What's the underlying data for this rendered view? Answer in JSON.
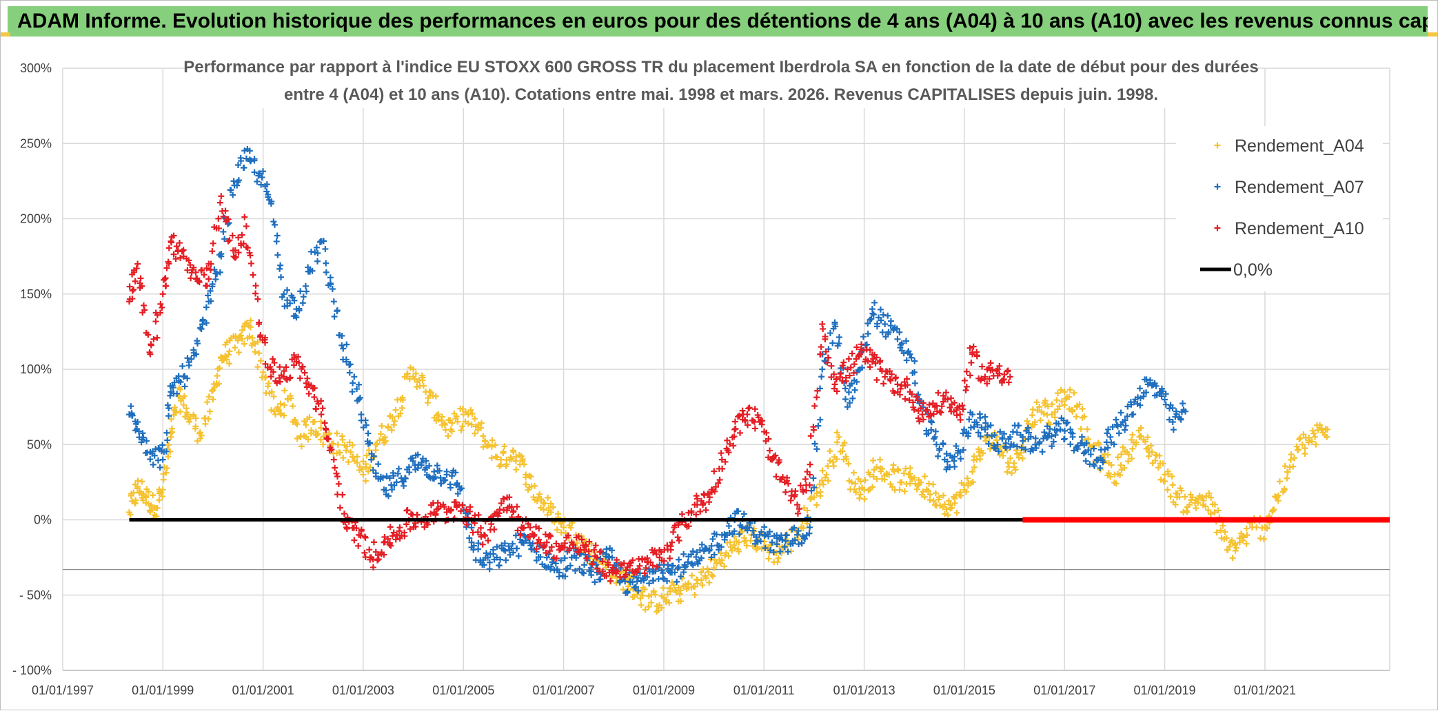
{
  "header": {
    "title": "ADAM Informe. Evolution historique des performances en euros pour des détentions de 4 ans (A04) à 10 ans (A10) avec les revenus connus capitalisés"
  },
  "chart_data": {
    "type": "scatter",
    "title_line1": "Performance par rapport à l'indice EU STOXX 600 GROSS TR  du placement Iberdrola SA en fonction de la date de début pour des durées",
    "title_line2": "entre 4 (A04) et 10 ans (A10). Cotations entre mai. 1998 et mars. 2026. Revenus CAPITALISES depuis juin. 1998.",
    "x_axis": {
      "type": "date",
      "range": [
        "1997-01-01",
        "2023-06-30"
      ],
      "tick_labels": [
        "01/01/1997",
        "01/01/1999",
        "01/01/2001",
        "01/01/2003",
        "01/01/2005",
        "01/01/2007",
        "01/01/2009",
        "01/01/2011",
        "01/01/2013",
        "01/01/2015",
        "01/01/2017",
        "01/01/2019",
        "01/01/2021"
      ]
    },
    "y_axis": {
      "range": [
        -100,
        300
      ],
      "unit": "%",
      "tick_values": [
        300,
        250,
        200,
        150,
        100,
        50,
        0,
        -50,
        -100
      ],
      "tick_labels": [
        "300%",
        "250%",
        "200%",
        "150%",
        "100%",
        "50%",
        "0%",
        "- 50%",
        "- 100%"
      ]
    },
    "grid": true,
    "legend_position": "top-right",
    "series": [
      {
        "name": "Rendement_A04",
        "color": "#f5c231",
        "marker": "plus",
        "points": [
          [
            "1998-05-01",
            5
          ],
          [
            "1998-07-01",
            22
          ],
          [
            "1998-09-01",
            15
          ],
          [
            "1998-11-01",
            8
          ],
          [
            "1999-01-01",
            20
          ],
          [
            "1999-03-01",
            55
          ],
          [
            "1999-05-01",
            82
          ],
          [
            "1999-07-01",
            70
          ],
          [
            "1999-10-01",
            58
          ],
          [
            "2000-01-01",
            80
          ],
          [
            "2000-03-01",
            108
          ],
          [
            "2000-05-01",
            112
          ],
          [
            "2000-08-01",
            120
          ],
          [
            "2000-10-01",
            128
          ],
          [
            "2001-01-01",
            98
          ],
          [
            "2001-04-01",
            70
          ],
          [
            "2001-07-01",
            80
          ],
          [
            "2001-10-01",
            55
          ],
          [
            "2002-01-01",
            65
          ],
          [
            "2002-04-01",
            55
          ],
          [
            "2002-07-01",
            50
          ],
          [
            "2002-10-01",
            45
          ],
          [
            "2003-01-01",
            30
          ],
          [
            "2003-04-01",
            50
          ],
          [
            "2003-07-01",
            62
          ],
          [
            "2003-10-01",
            80
          ],
          [
            "2004-01-01",
            100
          ],
          [
            "2004-04-01",
            85
          ],
          [
            "2004-07-01",
            70
          ],
          [
            "2004-10-01",
            60
          ],
          [
            "2005-01-01",
            70
          ],
          [
            "2005-04-01",
            62
          ],
          [
            "2005-07-01",
            50
          ],
          [
            "2005-10-01",
            40
          ],
          [
            "2006-01-01",
            45
          ],
          [
            "2006-04-01",
            30
          ],
          [
            "2006-07-01",
            15
          ],
          [
            "2006-10-01",
            5
          ],
          [
            "2007-01-01",
            -5
          ],
          [
            "2007-04-01",
            -10
          ],
          [
            "2007-07-01",
            -20
          ],
          [
            "2007-10-01",
            -28
          ],
          [
            "2008-01-01",
            -35
          ],
          [
            "2008-04-01",
            -40
          ],
          [
            "2008-07-01",
            -48
          ],
          [
            "2008-10-01",
            -55
          ],
          [
            "2009-01-01",
            -52
          ],
          [
            "2009-04-01",
            -48
          ],
          [
            "2009-07-01",
            -45
          ],
          [
            "2009-10-01",
            -40
          ],
          [
            "2010-01-01",
            -32
          ],
          [
            "2010-04-01",
            -22
          ],
          [
            "2010-07-01",
            -15
          ],
          [
            "2010-10-01",
            -10
          ],
          [
            "2011-01-01",
            -18
          ],
          [
            "2011-04-01",
            -22
          ],
          [
            "2011-07-01",
            -15
          ],
          [
            "2011-10-01",
            -5
          ],
          [
            "2012-01-01",
            15
          ],
          [
            "2012-04-01",
            30
          ],
          [
            "2012-07-01",
            55
          ],
          [
            "2012-10-01",
            25
          ],
          [
            "2013-01-01",
            20
          ],
          [
            "2013-04-01",
            35
          ],
          [
            "2013-07-01",
            30
          ],
          [
            "2013-10-01",
            25
          ],
          [
            "2014-01-01",
            28
          ],
          [
            "2014-04-01",
            20
          ],
          [
            "2014-07-01",
            15
          ],
          [
            "2014-10-01",
            8
          ],
          [
            "2015-01-01",
            20
          ],
          [
            "2015-04-01",
            40
          ],
          [
            "2015-07-01",
            55
          ],
          [
            "2015-10-01",
            45
          ],
          [
            "2016-01-01",
            35
          ],
          [
            "2016-04-01",
            60
          ],
          [
            "2016-07-01",
            75
          ],
          [
            "2016-10-01",
            70
          ],
          [
            "2017-01-01",
            85
          ],
          [
            "2017-04-01",
            75
          ],
          [
            "2017-07-01",
            50
          ],
          [
            "2017-10-01",
            40
          ],
          [
            "2018-01-01",
            30
          ],
          [
            "2018-04-01",
            45
          ],
          [
            "2018-07-01",
            55
          ],
          [
            "2018-10-01",
            45
          ],
          [
            "2019-01-01",
            30
          ],
          [
            "2019-04-01",
            15
          ],
          [
            "2019-07-01",
            10
          ],
          [
            "2019-10-01",
            15
          ],
          [
            "2020-01-01",
            5
          ],
          [
            "2020-04-01",
            -20
          ],
          [
            "2020-07-01",
            -15
          ],
          [
            "2020-10-01",
            -5
          ],
          [
            "2021-01-01",
            -5
          ],
          [
            "2021-04-01",
            15
          ],
          [
            "2021-07-01",
            35
          ],
          [
            "2021-10-01",
            50
          ],
          [
            "2022-01-01",
            55
          ],
          [
            "2022-04-01",
            60
          ]
        ]
      },
      {
        "name": "Rendement_A07",
        "color": "#1f6fbf",
        "marker": "plus",
        "points": [
          [
            "1998-05-01",
            70
          ],
          [
            "1998-07-01",
            65
          ],
          [
            "1998-10-01",
            45
          ],
          [
            "1999-01-01",
            40
          ],
          [
            "1999-03-01",
            85
          ],
          [
            "1999-06-01",
            95
          ],
          [
            "1999-09-01",
            110
          ],
          [
            "1999-12-01",
            145
          ],
          [
            "2000-03-01",
            175
          ],
          [
            "2000-06-01",
            225
          ],
          [
            "2000-09-01",
            240
          ],
          [
            "2000-12-01",
            230
          ],
          [
            "2001-03-01",
            210
          ],
          [
            "2001-06-01",
            150
          ],
          [
            "2001-09-01",
            140
          ],
          [
            "2001-12-01",
            165
          ],
          [
            "2002-03-01",
            185
          ],
          [
            "2002-06-01",
            145
          ],
          [
            "2002-09-01",
            105
          ],
          [
            "2002-12-01",
            80
          ],
          [
            "2003-03-01",
            40
          ],
          [
            "2003-06-01",
            20
          ],
          [
            "2003-09-01",
            25
          ],
          [
            "2003-12-01",
            35
          ],
          [
            "2004-03-01",
            38
          ],
          [
            "2004-06-01",
            32
          ],
          [
            "2004-09-01",
            30
          ],
          [
            "2004-12-01",
            22
          ],
          [
            "2005-03-01",
            -15
          ],
          [
            "2005-06-01",
            -30
          ],
          [
            "2005-09-01",
            -25
          ],
          [
            "2005-12-01",
            -20
          ],
          [
            "2006-03-01",
            -15
          ],
          [
            "2006-06-01",
            -20
          ],
          [
            "2006-09-01",
            -25
          ],
          [
            "2006-12-01",
            -35
          ],
          [
            "2007-03-01",
            -25
          ],
          [
            "2007-06-01",
            -30
          ],
          [
            "2007-09-01",
            -35
          ],
          [
            "2007-12-01",
            -25
          ],
          [
            "2008-03-01",
            -40
          ],
          [
            "2008-06-01",
            -45
          ],
          [
            "2008-09-01",
            -38
          ],
          [
            "2008-12-01",
            -30
          ],
          [
            "2009-03-01",
            -35
          ],
          [
            "2009-06-01",
            -30
          ],
          [
            "2009-09-01",
            -28
          ],
          [
            "2009-12-01",
            -20
          ],
          [
            "2010-03-01",
            -10
          ],
          [
            "2010-06-01",
            0
          ],
          [
            "2010-09-01",
            -5
          ],
          [
            "2010-12-01",
            -10
          ],
          [
            "2011-03-01",
            -15
          ],
          [
            "2011-06-01",
            -18
          ],
          [
            "2011-09-01",
            -10
          ],
          [
            "2011-12-01",
            -5
          ],
          [
            "2012-03-01",
            100
          ],
          [
            "2012-06-01",
            130
          ],
          [
            "2012-09-01",
            75
          ],
          [
            "2012-12-01",
            100
          ],
          [
            "2013-03-01",
            140
          ],
          [
            "2013-06-01",
            130
          ],
          [
            "2013-09-01",
            120
          ],
          [
            "2013-12-01",
            110
          ],
          [
            "2014-03-01",
            70
          ],
          [
            "2014-06-01",
            55
          ],
          [
            "2014-09-01",
            35
          ],
          [
            "2014-12-01",
            45
          ],
          [
            "2015-03-01",
            70
          ],
          [
            "2015-06-01",
            60
          ],
          [
            "2015-09-01",
            50
          ],
          [
            "2015-12-01",
            55
          ],
          [
            "2016-03-01",
            55
          ],
          [
            "2016-06-01",
            50
          ],
          [
            "2016-09-01",
            55
          ],
          [
            "2016-12-01",
            60
          ],
          [
            "2017-03-01",
            55
          ],
          [
            "2017-06-01",
            45
          ],
          [
            "2017-09-01",
            40
          ],
          [
            "2017-12-01",
            55
          ],
          [
            "2018-03-01",
            65
          ],
          [
            "2018-06-01",
            80
          ],
          [
            "2018-09-01",
            90
          ],
          [
            "2018-12-01",
            85
          ],
          [
            "2019-03-01",
            65
          ],
          [
            "2019-06-01",
            72
          ]
        ]
      },
      {
        "name": "Rendement_A10",
        "color": "#e41e24",
        "marker": "plus",
        "points": [
          [
            "1998-05-01",
            145
          ],
          [
            "1998-07-01",
            170
          ],
          [
            "1998-10-01",
            110
          ],
          [
            "1999-01-01",
            150
          ],
          [
            "1999-03-01",
            185
          ],
          [
            "1999-06-01",
            175
          ],
          [
            "1999-09-01",
            160
          ],
          [
            "1999-12-01",
            160
          ],
          [
            "2000-03-01",
            215
          ],
          [
            "2000-06-01",
            175
          ],
          [
            "2000-09-01",
            195
          ],
          [
            "2000-12-01",
            130
          ],
          [
            "2001-03-01",
            100
          ],
          [
            "2001-06-01",
            95
          ],
          [
            "2001-09-01",
            105
          ],
          [
            "2001-12-01",
            90
          ],
          [
            "2002-03-01",
            70
          ],
          [
            "2002-06-01",
            40
          ],
          [
            "2002-09-01",
            -5
          ],
          [
            "2002-12-01",
            -10
          ],
          [
            "2003-03-01",
            -25
          ],
          [
            "2003-06-01",
            -15
          ],
          [
            "2003-09-01",
            -10
          ],
          [
            "2003-12-01",
            0
          ],
          [
            "2004-03-01",
            0
          ],
          [
            "2004-06-01",
            5
          ],
          [
            "2004-09-01",
            5
          ],
          [
            "2004-12-01",
            10
          ],
          [
            "2005-03-01",
            0
          ],
          [
            "2005-06-01",
            -10
          ],
          [
            "2005-09-01",
            5
          ],
          [
            "2005-12-01",
            15
          ],
          [
            "2006-03-01",
            -5
          ],
          [
            "2006-06-01",
            -10
          ],
          [
            "2006-09-01",
            -15
          ],
          [
            "2006-12-01",
            -20
          ],
          [
            "2007-03-01",
            -15
          ],
          [
            "2007-06-01",
            -20
          ],
          [
            "2007-09-01",
            -25
          ],
          [
            "2007-12-01",
            -35
          ],
          [
            "2008-03-01",
            -30
          ],
          [
            "2008-06-01",
            -35
          ],
          [
            "2008-09-01",
            -28
          ],
          [
            "2008-12-01",
            -25
          ],
          [
            "2009-03-01",
            -15
          ],
          [
            "2009-06-01",
            0
          ],
          [
            "2009-09-01",
            10
          ],
          [
            "2009-12-01",
            15
          ],
          [
            "2010-03-01",
            40
          ],
          [
            "2010-06-01",
            60
          ],
          [
            "2010-09-01",
            70
          ],
          [
            "2010-12-01",
            65
          ],
          [
            "2011-03-01",
            40
          ],
          [
            "2011-06-01",
            25
          ],
          [
            "2011-09-01",
            10
          ],
          [
            "2011-12-01",
            30
          ],
          [
            "2012-03-01",
            130
          ],
          [
            "2012-06-01",
            90
          ],
          [
            "2012-09-01",
            100
          ],
          [
            "2012-12-01",
            110
          ],
          [
            "2013-03-01",
            105
          ],
          [
            "2013-06-01",
            95
          ],
          [
            "2013-09-01",
            90
          ],
          [
            "2013-12-01",
            85
          ],
          [
            "2014-03-01",
            70
          ],
          [
            "2014-06-01",
            75
          ],
          [
            "2014-09-01",
            80
          ],
          [
            "2014-12-01",
            70
          ],
          [
            "2015-03-01",
            110
          ],
          [
            "2015-06-01",
            95
          ],
          [
            "2015-09-01",
            100
          ],
          [
            "2015-12-01",
            95
          ]
        ]
      },
      {
        "name": "0,0%",
        "color": "#000000",
        "marker": "line",
        "points": [
          [
            "1998-05-01",
            0
          ],
          [
            "2016-03-01",
            0
          ]
        ]
      },
      {
        "color": "#ff0000",
        "marker": "line",
        "points": [
          [
            "2016-03-01",
            0
          ],
          [
            "2023-06-30",
            0
          ]
        ]
      }
    ]
  }
}
